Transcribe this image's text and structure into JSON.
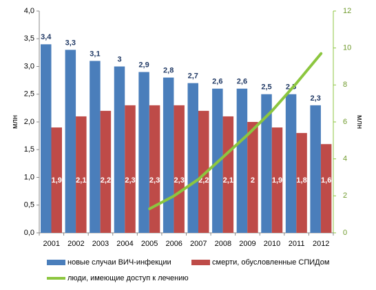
{
  "chart_data": {
    "type": "bar",
    "y_label": "млн",
    "y2_label": "млн",
    "categories": [
      "2001",
      "2002",
      "2003",
      "2004",
      "2005",
      "2006",
      "2007",
      "2008",
      "2009",
      "2010",
      "2011",
      "2012"
    ],
    "series": [
      {
        "name": "новые случаи ВИЧ-инфекции",
        "color": "#4a7ebb",
        "type": "bar",
        "values": [
          3.4,
          3.3,
          3.1,
          3,
          2.9,
          2.8,
          2.7,
          2.6,
          2.6,
          2.5,
          2.5,
          2.3
        ],
        "value_labels": [
          "3,4",
          "3,3",
          "3,1",
          "3",
          "2,9",
          "2,8",
          "2,7",
          "2,6",
          "2,6",
          "2,5",
          "2,5",
          "2,3"
        ]
      },
      {
        "name": "смерти, обусловленные СПИДом",
        "color": "#be4b48",
        "type": "bar",
        "values": [
          1.9,
          2.1,
          2.2,
          2.3,
          2.3,
          2.3,
          2.2,
          2.1,
          2,
          1.9,
          1.8,
          1.6
        ],
        "value_labels": [
          "1,9",
          "2,1",
          "2,2",
          "2,3",
          "2,3",
          "2,3",
          "2,2",
          "2,1",
          "2",
          "1,9",
          "1,8",
          "1,6"
        ]
      },
      {
        "name": "люди, имеющие доступ к лечению",
        "color": "#8cc63f",
        "type": "line",
        "axis": "y2",
        "values": [
          null,
          null,
          null,
          null,
          1.3,
          2.0,
          2.9,
          4.1,
          5.3,
          6.6,
          8.1,
          9.7
        ]
      }
    ],
    "ylim": [
      0,
      4
    ],
    "yticks": [
      {
        "value": 0,
        "label": "0,0"
      },
      {
        "value": 0.5,
        "label": "0,5"
      },
      {
        "value": 1,
        "label": "1,0"
      },
      {
        "value": 1.5,
        "label": "1,5"
      },
      {
        "value": 2,
        "label": "2,0"
      },
      {
        "value": 2.5,
        "label": "2,5"
      },
      {
        "value": 3,
        "label": "3,0"
      },
      {
        "value": 3.5,
        "label": "3,5"
      },
      {
        "value": 4,
        "label": "4,0"
      }
    ],
    "y2lim": [
      0,
      12
    ],
    "y2ticks": [
      0,
      2,
      4,
      6,
      8,
      10,
      12
    ],
    "grid": false
  }
}
